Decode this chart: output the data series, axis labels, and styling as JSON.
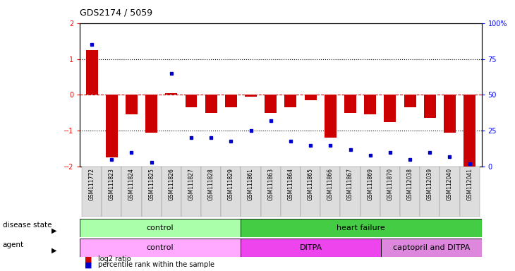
{
  "title": "GDS2174 / 5059",
  "samples": [
    "GSM111772",
    "GSM111823",
    "GSM111824",
    "GSM111825",
    "GSM111826",
    "GSM111827",
    "GSM111828",
    "GSM111829",
    "GSM111861",
    "GSM111863",
    "GSM111864",
    "GSM111865",
    "GSM111866",
    "GSM111867",
    "GSM111869",
    "GSM111870",
    "GSM112038",
    "GSM112039",
    "GSM112040",
    "GSM112041"
  ],
  "log2_ratio": [
    1.25,
    -1.75,
    -0.55,
    -1.05,
    0.05,
    -0.35,
    -0.5,
    -0.35,
    -0.05,
    -0.5,
    -0.35,
    -0.15,
    -1.2,
    -0.5,
    -0.55,
    -0.75,
    -0.35,
    -0.65,
    -1.05,
    -2.0
  ],
  "percentile": [
    85,
    5,
    10,
    3,
    65,
    20,
    20,
    18,
    25,
    32,
    18,
    15,
    15,
    12,
    8,
    10,
    5,
    10,
    7,
    2
  ],
  "bar_color": "#cc0000",
  "dot_color": "#0000cc",
  "ylim": [
    -2,
    2
  ],
  "y2lim": [
    0,
    100
  ],
  "y_ticks": [
    -2,
    -1,
    0,
    1,
    2
  ],
  "y2_ticks": [
    0,
    25,
    50,
    75,
    100
  ],
  "hline_color_zero": "#cc0000",
  "hline_color_other": "#000000",
  "disease_state_groups": [
    {
      "label": "control",
      "start": 0,
      "end": 8,
      "color": "#aaffaa"
    },
    {
      "label": "heart failure",
      "start": 8,
      "end": 20,
      "color": "#44cc44"
    }
  ],
  "agent_groups": [
    {
      "label": "control",
      "start": 0,
      "end": 8,
      "color": "#ffaaff"
    },
    {
      "label": "DITPA",
      "start": 8,
      "end": 15,
      "color": "#ee44ee"
    },
    {
      "label": "captopril and DITPA",
      "start": 15,
      "end": 20,
      "color": "#dd88dd"
    }
  ],
  "legend_bar_label": "log2 ratio",
  "legend_dot_label": "percentile rank within the sample",
  "background_color": "#ffffff",
  "plot_bg_color": "#ffffff",
  "tick_bg_color": "#dddddd"
}
